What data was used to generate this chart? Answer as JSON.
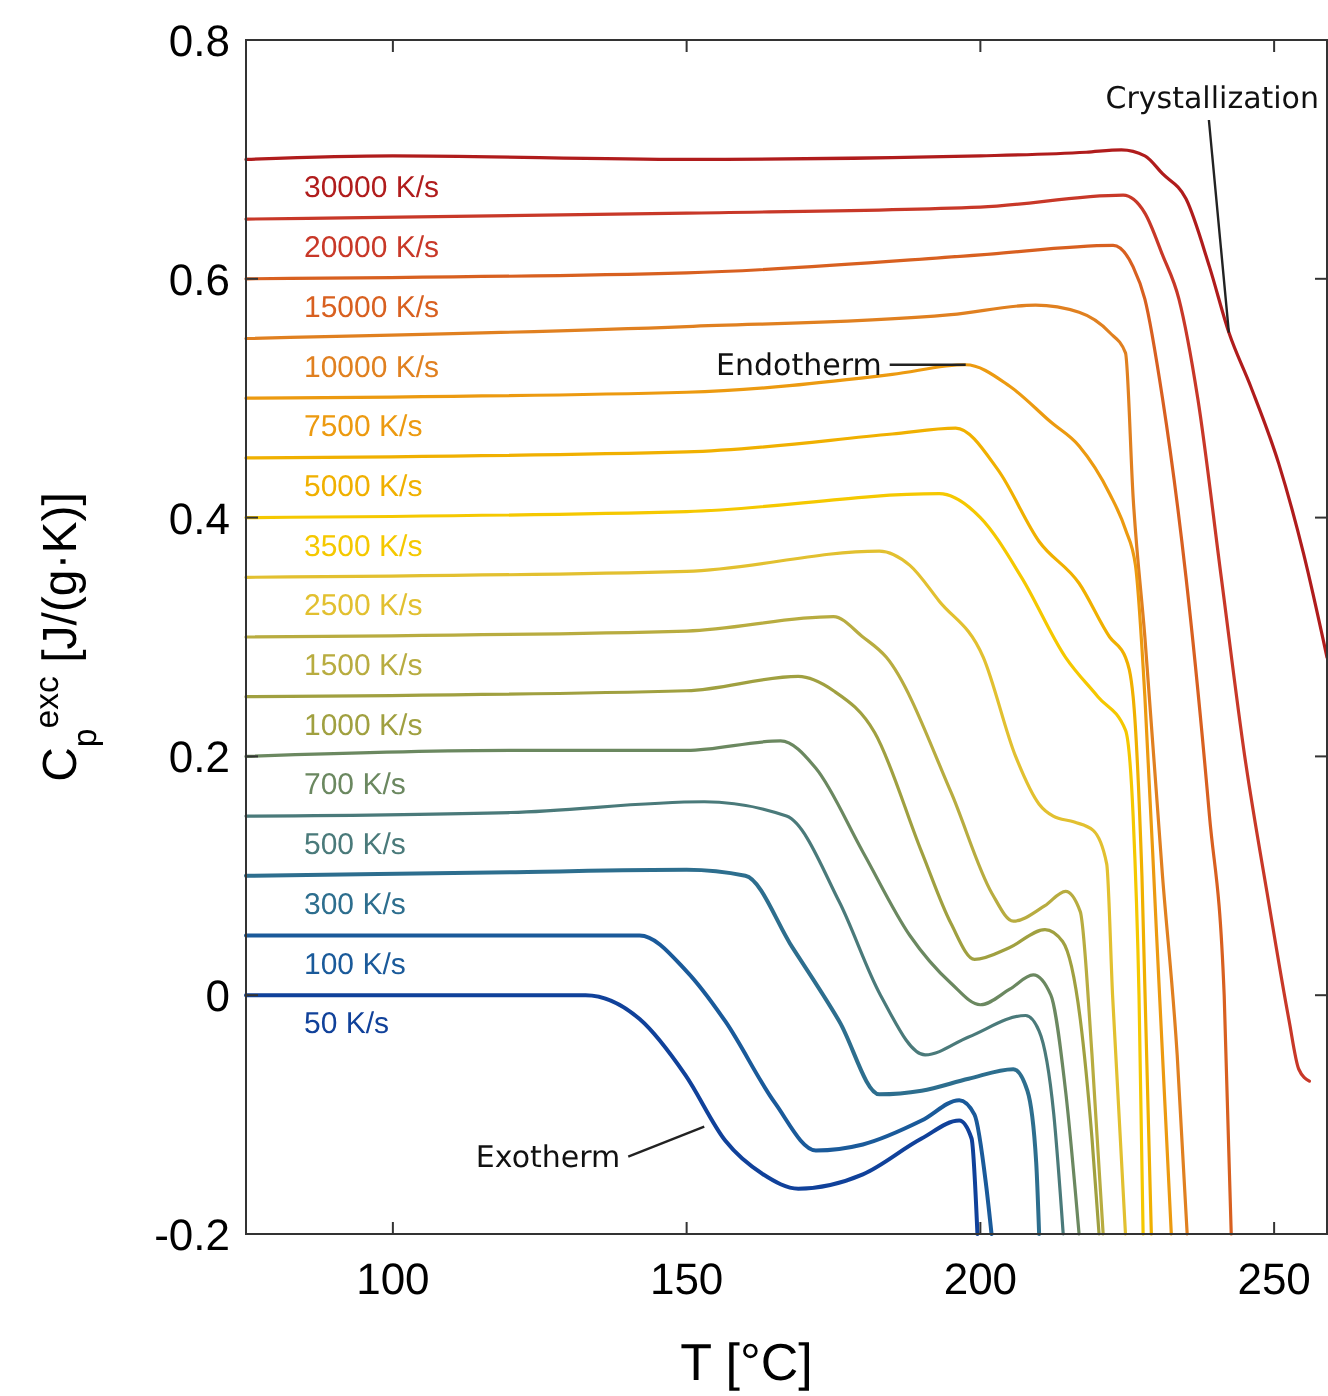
{
  "chart_data": {
    "type": "line",
    "xlabel": "T   [°C]",
    "ylabel": "C$_{p}$$^{exc}$   [J/(g·K)]",
    "xlim": [
      75,
      259
    ],
    "ylim": [
      -0.2,
      0.8
    ],
    "xticks": [
      100,
      150,
      200,
      250
    ],
    "yticks": [
      -0.2,
      0,
      0.2,
      0.4,
      0.6,
      0.8
    ],
    "grid": false,
    "legend": false,
    "marker": "none",
    "line_style": "solid",
    "annotations": [
      {
        "text": "Crystallization",
        "x": 242.3,
        "y": 0.555
      },
      {
        "text": "Endotherm",
        "x": 197.5,
        "y": 0.528
      },
      {
        "text": "Exotherm",
        "x": 153,
        "y": -0.11
      }
    ],
    "series": [
      {
        "name": "30000 K/s",
        "color": "#b01c1c",
        "x": [
          75,
          100,
          150,
          200,
          218,
          224,
          228,
          231,
          235,
          239,
          242.3,
          246,
          250.8,
          255,
          259
        ],
        "values": [
          0.7,
          0.703,
          0.7,
          0.703,
          0.706,
          0.708,
          0.703,
          0.688,
          0.667,
          0.61,
          0.555,
          0.51,
          0.445,
          0.37,
          0.283
        ]
      },
      {
        "name": "20000 K/s",
        "color": "#c83828",
        "x": [
          75,
          150,
          200,
          224.3,
          228,
          231,
          233.8,
          237,
          241,
          245,
          249,
          252.5,
          254.2,
          256
        ],
        "values": [
          0.65,
          0.655,
          0.66,
          0.67,
          0.655,
          0.62,
          0.583,
          0.5,
          0.35,
          0.2,
          0.08,
          -0.02,
          -0.062,
          -0.072
        ]
      },
      {
        "name": "15000 K/s",
        "color": "#d86020",
        "x": [
          75,
          150,
          200,
          222.6,
          226,
          228,
          231,
          235,
          239,
          241.5,
          242.7
        ],
        "values": [
          0.6,
          0.605,
          0.62,
          0.628,
          0.61,
          0.583,
          0.5,
          0.35,
          0.15,
          0.0,
          -0.2
        ]
      },
      {
        "name": "10000 K/s",
        "color": "#e08020",
        "x": [
          75,
          150,
          195,
          209.4,
          216.8,
          222,
          224.7,
          226,
          228,
          231,
          233.5,
          235.2
        ],
        "values": [
          0.55,
          0.56,
          0.57,
          0.578,
          0.572,
          0.555,
          0.538,
          0.417,
          0.3,
          0.1,
          -0.05,
          -0.2
        ]
      },
      {
        "name": "7500 K/s",
        "color": "#ec9a10",
        "x": [
          75,
          150,
          185,
          197.5,
          205,
          212,
          216.8,
          222,
          224.7,
          226.4,
          228,
          230,
          232.5
        ],
        "values": [
          0.5,
          0.505,
          0.52,
          0.528,
          0.51,
          0.48,
          0.46,
          0.42,
          0.39,
          0.36,
          0.25,
          0.05,
          -0.2
        ]
      },
      {
        "name": "5000 K/s",
        "color": "#f0b000",
        "x": [
          75,
          150,
          185,
          195.8,
          203,
          210,
          216.8,
          222,
          224.7,
          226,
          227.5,
          229.1
        ],
        "values": [
          0.45,
          0.455,
          0.47,
          0.475,
          0.44,
          0.38,
          0.345,
          0.3,
          0.283,
          0.25,
          0.1,
          -0.2
        ]
      },
      {
        "name": "3500 K/s",
        "color": "#f5c800",
        "x": [
          75,
          150,
          193,
          200,
          207,
          214.5,
          220,
          224.7,
          226,
          227,
          227.7
        ],
        "values": [
          0.4,
          0.405,
          0.42,
          0.4,
          0.35,
          0.283,
          0.25,
          0.222,
          0.15,
          0.0,
          -0.2
        ]
      },
      {
        "name": "2500 K/s",
        "color": "#e2c030",
        "x": [
          75,
          150,
          182.8,
          188,
          193,
          200.5,
          206,
          210,
          212.4,
          216,
          219.2,
          221.5,
          222.5,
          224.7
        ],
        "values": [
          0.35,
          0.355,
          0.372,
          0.36,
          0.33,
          0.283,
          0.2,
          0.16,
          0.15,
          0.145,
          0.138,
          0.11,
          0.0,
          -0.2
        ]
      },
      {
        "name": "1500 K/s",
        "color": "#b8ac40",
        "x": [
          75,
          150,
          175,
          180,
          184,
          195,
          202,
          205.6,
          211,
          214.5,
          217,
          219,
          220.9
        ],
        "values": [
          0.3,
          0.305,
          0.317,
          0.3,
          0.283,
          0.17,
          0.085,
          0.062,
          0.075,
          0.087,
          0.07,
          -0.05,
          -0.2
        ]
      },
      {
        "name": "1000 K/s",
        "color": "#a0a040",
        "x": [
          75,
          150,
          169,
          175,
          182,
          190,
          195,
          199,
          205,
          211,
          214,
          217,
          219,
          220.2
        ],
        "values": [
          0.25,
          0.255,
          0.267,
          0.255,
          0.22,
          0.12,
          0.06,
          0.03,
          0.04,
          0.055,
          0.045,
          -0.02,
          -0.12,
          -0.2
        ]
      },
      {
        "name": "700 K/s",
        "color": "#6b8860",
        "x": [
          75,
          120,
          150,
          166,
          172,
          180,
          188,
          195,
          200,
          205,
          209,
          212,
          214.5,
          216.8
        ],
        "values": [
          0.2,
          0.205,
          0.205,
          0.213,
          0.19,
          0.12,
          0.05,
          0.01,
          -0.008,
          0.005,
          0.017,
          0.0,
          -0.08,
          -0.2
        ]
      },
      {
        "name": "500 K/s",
        "color": "#4a7a7a",
        "x": [
          75,
          120,
          153,
          167,
          176,
          183,
          190.6,
          198,
          207.7,
          210,
          212.5,
          214.1
        ],
        "values": [
          0.15,
          0.153,
          0.162,
          0.15,
          0.078,
          0.0,
          -0.05,
          -0.035,
          -0.017,
          -0.03,
          -0.1,
          -0.2
        ]
      },
      {
        "name": "300 K/s",
        "color": "#2d6e8e",
        "x": [
          75,
          120,
          150,
          160,
          168,
          176,
          182.8,
          190,
          198,
          205.6,
          208,
          209.5,
          210
        ],
        "values": [
          0.1,
          0.103,
          0.105,
          0.1,
          0.04,
          -0.022,
          -0.083,
          -0.08,
          -0.07,
          -0.062,
          -0.08,
          -0.14,
          -0.2
        ]
      },
      {
        "name": "100 K/s",
        "color": "#1a5a9a",
        "x": [
          75,
          120,
          142,
          150,
          156.6,
          165,
          172,
          180,
          190,
          196.4,
          199,
          201,
          201.9
        ],
        "values": [
          0.05,
          0.05,
          0.05,
          0.02,
          -0.022,
          -0.09,
          -0.13,
          -0.125,
          -0.105,
          -0.088,
          -0.1,
          -0.16,
          -0.2
        ]
      },
      {
        "name": "50 K/s",
        "color": "#10419a",
        "x": [
          75,
          120,
          132.8,
          142,
          149.8,
          156.6,
          163,
          169,
          180,
          190,
          196.4,
          198.5,
          199.5
        ],
        "values": [
          0.0,
          0.0,
          0.0,
          -0.02,
          -0.067,
          -0.122,
          -0.15,
          -0.162,
          -0.15,
          -0.12,
          -0.105,
          -0.12,
          -0.2
        ]
      }
    ]
  }
}
